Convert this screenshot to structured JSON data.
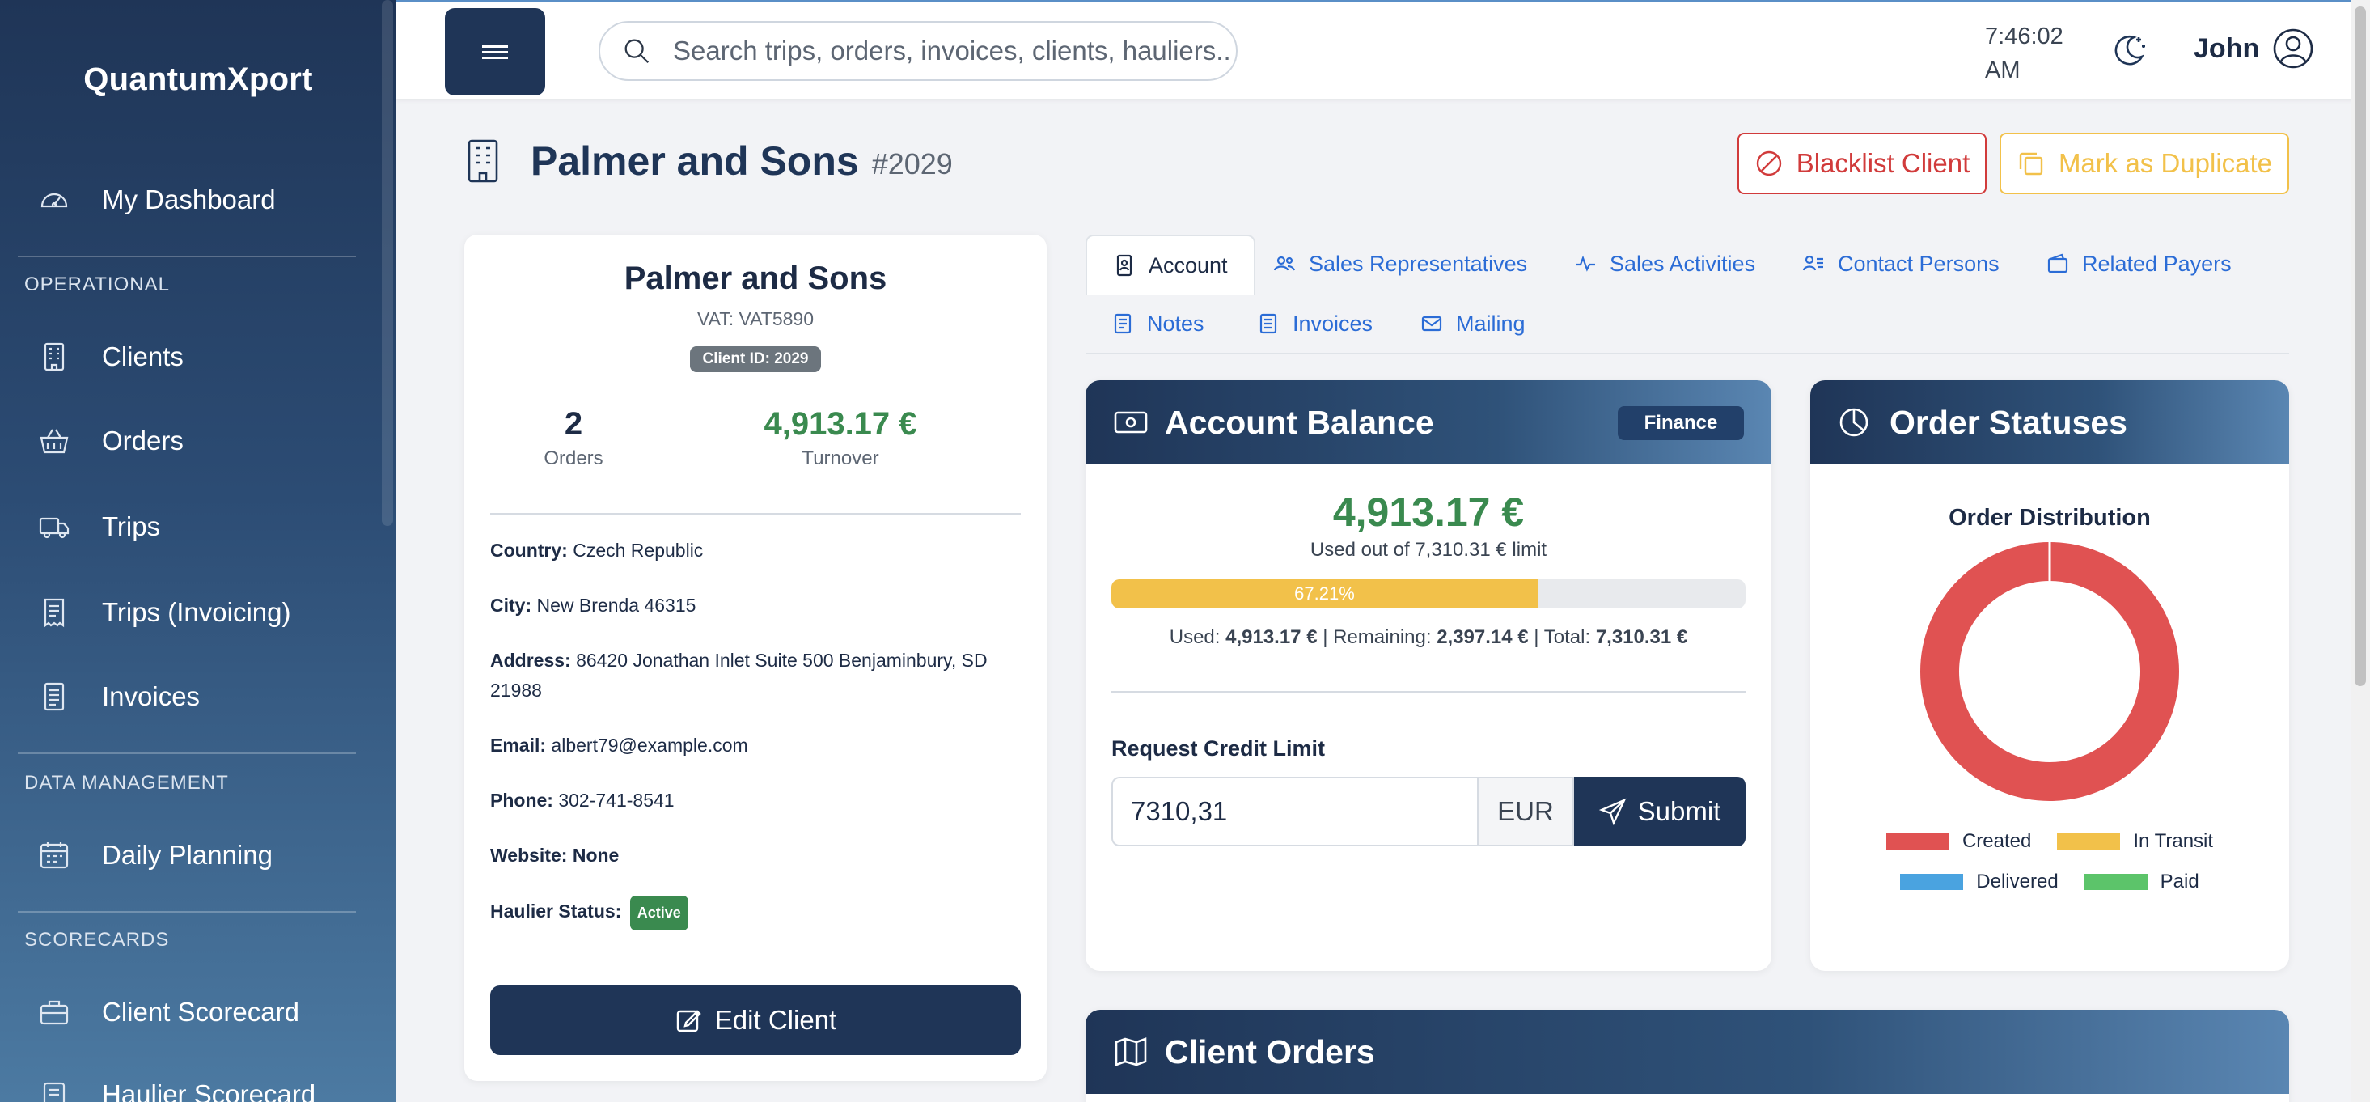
{
  "app": {
    "brand": "QuantumXport"
  },
  "sidebar": {
    "dashboard": "My Dashboard",
    "section_operational": "OPERATIONAL",
    "clients": "Clients",
    "orders": "Orders",
    "trips": "Trips",
    "trips_invoicing": "Trips (Invoicing)",
    "invoices": "Invoices",
    "section_data": "DATA MANAGEMENT",
    "daily_planning": "Daily Planning",
    "section_scorecards": "SCORECARDS",
    "client_scorecard": "Client Scorecard",
    "haulier_scorecard": "Haulier Scorecard"
  },
  "topbar": {
    "search_placeholder": "Search trips, orders, invoices, clients, hauliers...",
    "time": "7:46:02",
    "ampm": "AM",
    "user_name": "John"
  },
  "header": {
    "title": "Palmer and Sons",
    "id": "#2029",
    "blacklist_label": "Blacklist Client",
    "duplicate_label": "Mark as Duplicate"
  },
  "profile": {
    "name": "Palmer and Sons",
    "vat": "VAT: VAT5890",
    "client_id": "Client ID: 2029",
    "orders_value": "2",
    "orders_label": "Orders",
    "turnover_value": "4,913.17 €",
    "turnover_label": "Turnover",
    "country_label": "Country:",
    "country": "Czech Republic",
    "city_label": "City:",
    "city": "New Brenda 46315",
    "address_label": "Address:",
    "address": "86420 Jonathan Inlet Suite 500 Benjaminbury, SD 21988",
    "email_label": "Email:",
    "email": "albert79@example.com",
    "phone_label": "Phone:",
    "phone": "302-741-8541",
    "website_label": "Website:",
    "website": "None",
    "haulier_status_label": "Haulier Status:",
    "haulier_status": "Active",
    "edit_label": "Edit Client"
  },
  "tabs": {
    "account": "Account",
    "sales_reps": "Sales Representatives",
    "sales_activities": "Sales Activities",
    "contact_persons": "Contact Persons",
    "related_payers": "Related Payers",
    "notes": "Notes",
    "invoices": "Invoices",
    "mailing": "Mailing"
  },
  "account": {
    "title": "Account Balance",
    "badge": "Finance",
    "amount": "4,913.17 €",
    "used_out_of": "Used out of 7,310.31 € limit",
    "progress_percent": 67.21,
    "progress_label": "67.21%",
    "used_label": "Used:",
    "used_value": "4,913.17 €",
    "remaining_label": "| Remaining:",
    "remaining_value": "2,397.14 €",
    "total_label": "| Total:",
    "total_value": "7,310.31 €",
    "request_label": "Request Credit Limit",
    "request_value": "7310,31",
    "currency": "EUR",
    "submit_label": "Submit"
  },
  "order_statuses": {
    "title": "Order Statuses",
    "colors": {
      "created": "#e05252",
      "in_transit": "#f2c14a",
      "delivered": "#4aa3e0",
      "paid": "#5cc46a"
    }
  },
  "chart_data": {
    "type": "pie",
    "title": "Order Distribution",
    "categories": [
      "Created",
      "In Transit",
      "Delivered",
      "Paid"
    ],
    "values": [
      2,
      0,
      0,
      0
    ],
    "legend_position": "bottom"
  },
  "client_orders": {
    "title": "Client Orders"
  }
}
